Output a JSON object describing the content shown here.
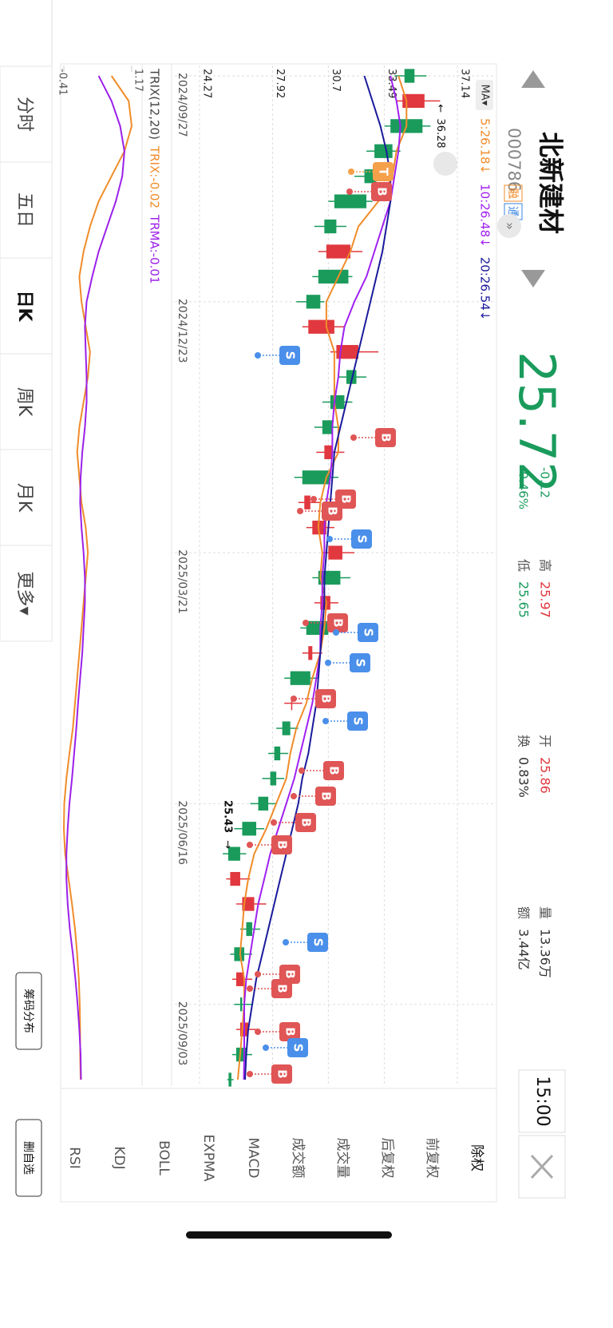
{
  "header": {
    "name": "北新建材",
    "code": "000786",
    "badges": [
      "融",
      "通"
    ],
    "price": "25.72",
    "change": "-0.12",
    "change_pct": "-0.46%",
    "stats": [
      [
        "高",
        "25.97"
      ],
      [
        "低",
        "25.65"
      ],
      [
        "开",
        "25.86"
      ],
      [
        "换",
        "0.83%"
      ],
      [
        "量",
        "13.36万"
      ],
      [
        "额",
        "3.44亿"
      ]
    ],
    "time": "15:00"
  },
  "chart_data": [
    {
      "type": "candlestick",
      "button": "MA▾",
      "categories": [
        "2024/09/27",
        null,
        null,
        null,
        null,
        null,
        null,
        null,
        null,
        "2024/12/23",
        null,
        null,
        null,
        null,
        null,
        null,
        null,
        null,
        null,
        "2025/03/21",
        null,
        null,
        null,
        null,
        null,
        null,
        null,
        null,
        null,
        "2025/06/16",
        null,
        null,
        null,
        null,
        null,
        null,
        null,
        "2025/09/03",
        null,
        null,
        null
      ],
      "open": [
        35.0,
        34.4,
        35.4,
        33.9,
        33.1,
        32.6,
        31.1,
        30.6,
        31.7,
        30.3,
        29.7,
        31.1,
        32.1,
        31.5,
        30.9,
        30.5,
        30.8,
        29.5,
        29.9,
        30.7,
        31.3,
        30.3,
        30.7,
        29.7,
        29.8,
        28.9,
        28.8,
        28.3,
        28.1,
        27.7,
        27.1,
        26.3,
        25.8,
        26.4,
        26.9,
        26.5,
        26.1,
        26.4,
        26.3,
        26.6,
        25.86
      ],
      "high": [
        35.6,
        36.28,
        35.8,
        34.3,
        33.6,
        32.9,
        31.6,
        32.4,
        31.9,
        30.5,
        31.5,
        33.2,
        32.6,
        31.9,
        31.3,
        31.5,
        31.2,
        30.3,
        31.0,
        32.0,
        31.8,
        31.2,
        31.1,
        30.4,
        30.2,
        29.4,
        29.2,
        28.7,
        28.5,
        28.1,
        27.5,
        26.6,
        26.8,
        27.6,
        27.3,
        26.9,
        26.9,
        26.9,
        27.1,
        26.9,
        25.97
      ],
      "low": [
        34.0,
        34.1,
        33.5,
        32.6,
        32.0,
        30.7,
        30.0,
        30.2,
        29.9,
        29.1,
        29.4,
        30.8,
        31.2,
        30.4,
        30.0,
        30.1,
        29.0,
        29.2,
        29.6,
        30.4,
        29.9,
        30.0,
        29.3,
        29.4,
        28.5,
        28.5,
        28.1,
        27.7,
        27.4,
        26.8,
        26.0,
        25.43,
        25.6,
        26.1,
        26.3,
        25.8,
        25.9,
        26.0,
        26.1,
        25.9,
        25.65
      ],
      "close": [
        34.5,
        35.5,
        33.8,
        33.0,
        32.5,
        31.0,
        30.5,
        31.8,
        30.2,
        29.6,
        31.0,
        32.2,
        31.6,
        30.8,
        30.4,
        30.9,
        29.4,
        29.8,
        30.6,
        31.4,
        30.2,
        30.8,
        29.6,
        29.9,
        28.8,
        28.9,
        28.4,
        28.0,
        27.8,
        27.2,
        26.4,
        25.7,
        26.3,
        27.0,
        26.6,
        26.0,
        26.5,
        26.3,
        26.7,
        26.1,
        25.72
      ],
      "up_color": "#e0383e",
      "down_color": "#1a9b5c",
      "series": [
        {
          "name": "5:26.18↓",
          "color": "#f08c2a",
          "values": [
            34.2,
            34.6,
            34.6,
            34.1,
            33.9,
            33.2,
            32.2,
            31.8,
            31.2,
            30.6,
            30.6,
            31.0,
            31.0,
            31.0,
            31.2,
            31.2,
            30.6,
            30.3,
            30.2,
            30.4,
            30.3,
            30.6,
            30.5,
            30.3,
            29.9,
            29.6,
            29.1,
            28.8,
            28.6,
            28.1,
            27.6,
            27.0,
            26.7,
            26.5,
            26.4,
            26.3,
            26.5,
            26.5,
            26.4,
            26.3,
            26.18
          ]
        },
        {
          "name": "10:26.48↓",
          "color": "#a020f0",
          "values": [
            33.8,
            34.1,
            34.3,
            34.2,
            34.0,
            33.8,
            33.4,
            33.0,
            32.6,
            32.0,
            31.5,
            31.3,
            31.2,
            31.0,
            30.9,
            30.9,
            30.8,
            30.6,
            30.5,
            30.5,
            30.4,
            30.4,
            30.3,
            30.3,
            30.1,
            29.9,
            29.6,
            29.3,
            29.0,
            28.6,
            28.2,
            27.8,
            27.5,
            27.2,
            27.0,
            26.8,
            26.6,
            26.5,
            26.5,
            26.5,
            26.48
          ]
        },
        {
          "name": "20:26.54↓",
          "color": "#1a1a9c",
          "values": [
            32.5,
            32.9,
            33.3,
            33.6,
            33.8,
            33.8,
            33.6,
            33.4,
            33.1,
            32.8,
            32.5,
            32.2,
            31.9,
            31.6,
            31.3,
            31.0,
            30.9,
            30.8,
            30.7,
            30.6,
            30.5,
            30.5,
            30.4,
            30.3,
            30.2,
            30.1,
            29.9,
            29.7,
            29.4,
            29.2,
            28.9,
            28.6,
            28.3,
            28.0,
            27.7,
            27.4,
            27.1,
            26.9,
            26.7,
            26.6,
            26.54
          ]
        }
      ],
      "ylim": [
        24.27,
        37.14
      ],
      "yticks": [
        37.14,
        33.49,
        30.7,
        27.92,
        24.27
      ],
      "grid": true,
      "trade_markers": [
        "T",
        "B",
        "S",
        "B",
        "B",
        "B",
        "S",
        "B",
        "S",
        "S",
        "B",
        "S",
        "B",
        "B",
        "B",
        "B",
        "S",
        "B",
        "B",
        "B",
        "S",
        "B"
      ],
      "marker_colors": {
        "B": "#e05555",
        "S": "#4a8fea",
        "T": "#f5a04a"
      }
    },
    {
      "type": "line",
      "title": "TRIX(12,20)",
      "series": [
        {
          "name": "TRIX:-0.02",
          "color": "#f08c2a",
          "values": [
            0.7,
            1.1,
            1.17,
            1.0,
            0.7,
            0.4,
            0.2,
            0.05,
            -0.05,
            0.0,
            0.1,
            0.2,
            0.15,
            0.05,
            -0.05,
            -0.1,
            -0.05,
            0.0,
            0.1,
            0.15,
            0.1,
            0.05,
            0.0,
            -0.05,
            -0.1,
            -0.15,
            -0.2,
            -0.28,
            -0.35,
            -0.4,
            -0.41,
            -0.38,
            -0.3,
            -0.22,
            -0.15,
            -0.1,
            -0.06,
            -0.04,
            -0.03,
            -0.03,
            -0.02
          ]
        },
        {
          "name": "TRMA:-0.01",
          "color": "#9b20e8",
          "values": [
            0.4,
            0.7,
            0.9,
            1.0,
            0.95,
            0.8,
            0.6,
            0.4,
            0.25,
            0.12,
            0.08,
            0.1,
            0.12,
            0.12,
            0.08,
            0.02,
            -0.02,
            -0.03,
            0.0,
            0.05,
            0.08,
            0.08,
            0.05,
            0.02,
            -0.03,
            -0.08,
            -0.12,
            -0.17,
            -0.22,
            -0.28,
            -0.32,
            -0.35,
            -0.35,
            -0.32,
            -0.27,
            -0.2,
            -0.14,
            -0.09,
            -0.05,
            -0.02,
            -0.01
          ]
        }
      ],
      "ylim": [
        -0.41,
        1.17
      ],
      "yticks": [
        1.17,
        -0.41
      ]
    }
  ],
  "options": [
    "除权",
    "前复权",
    "后复权",
    "成交量",
    "成交额",
    "MACD",
    "EXPMA",
    "BOLL",
    "KDJ",
    "RSI"
  ],
  "tabs": [
    "分时",
    "五日",
    "日K",
    "周K",
    "月K",
    "更多▾"
  ],
  "buttons": [
    "筹码分布",
    "删自选"
  ]
}
